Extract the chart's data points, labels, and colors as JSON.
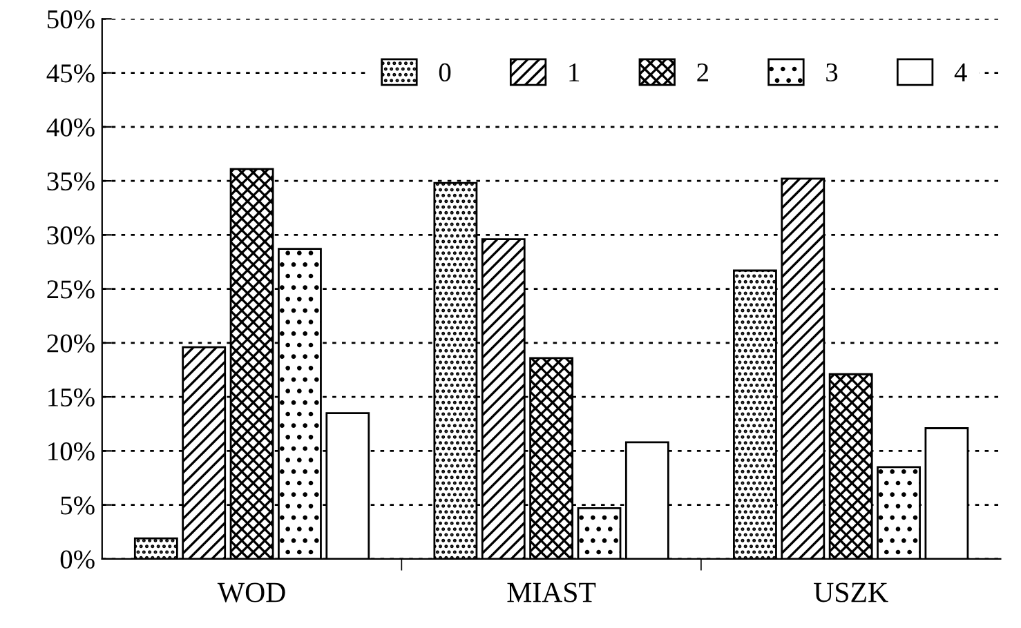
{
  "chart_data": {
    "type": "bar",
    "categories": [
      "WOD",
      "MIAST",
      "USZK"
    ],
    "series": [
      {
        "name": "0",
        "color": "#000000",
        "values": [
          1.9,
          34.8,
          26.7
        ]
      },
      {
        "name": "1",
        "color": "#000000",
        "values": [
          19.6,
          29.6,
          35.2
        ]
      },
      {
        "name": "2",
        "color": "#000000",
        "values": [
          36.1,
          18.6,
          17.1
        ]
      },
      {
        "name": "3",
        "color": "#000000",
        "values": [
          28.7,
          4.7,
          8.5
        ]
      },
      {
        "name": "4",
        "color": "#ffffff",
        "values": [
          13.5,
          10.8,
          12.1
        ]
      }
    ],
    "ylim": [
      0,
      50
    ],
    "yticks": [
      {
        "value": 0,
        "label": "0%"
      },
      {
        "value": 5,
        "label": "5%"
      },
      {
        "value": 10,
        "label": "10%"
      },
      {
        "value": 15,
        "label": "15%"
      },
      {
        "value": 20,
        "label": "20%"
      },
      {
        "value": 25,
        "label": "25%"
      },
      {
        "value": 30,
        "label": "30%"
      },
      {
        "value": 35,
        "label": "35%"
      },
      {
        "value": 40,
        "label": "40%"
      },
      {
        "value": 45,
        "label": "45%"
      },
      {
        "value": 50,
        "label": "50%"
      }
    ],
    "grid": "y",
    "legend": "top right"
  }
}
